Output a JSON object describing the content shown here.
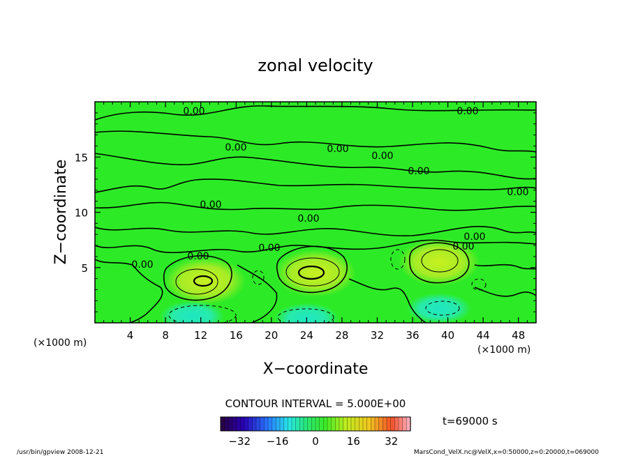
{
  "chart_data": {
    "type": "heatmap",
    "title": "zonal velocity",
    "xlabel": "X−coordinate",
    "ylabel": "Z−coordinate",
    "x_unit_left": "(×1000 m)",
    "x_unit_right": "(×1000 m)",
    "xlim": [
      0,
      50
    ],
    "ylim": [
      0,
      20
    ],
    "x_ticks": [
      4,
      8,
      12,
      16,
      20,
      24,
      28,
      32,
      36,
      40,
      44,
      48
    ],
    "y_ticks": [
      5,
      10,
      15
    ],
    "contour_label": "0.00",
    "contour_interval": "CONTOUR INTERVAL = 5.000E+00",
    "time_label": "t=69000 s",
    "colorbar": {
      "range": [
        -40,
        40
      ],
      "ticks": [
        -32,
        -16,
        0,
        16,
        32
      ],
      "tick_labels": [
        "−32",
        "−16",
        "0",
        "16",
        "32"
      ]
    },
    "features": [
      {
        "type": "max",
        "x": 12.5,
        "z": 3.8
      },
      {
        "type": "max",
        "x": 25,
        "z": 4.5
      },
      {
        "type": "max",
        "x": 39,
        "z": 5.5
      },
      {
        "type": "min",
        "x": 11,
        "z": 0.6
      },
      {
        "type": "min",
        "x": 24,
        "z": 0.4
      },
      {
        "type": "min",
        "x": 39,
        "z": 1.3
      }
    ],
    "colors": {
      "background": "#22ee22",
      "positive": "#aaee22",
      "negative": "#22eecc"
    }
  },
  "footer": {
    "left": "/usr/bin/gpview   2008-12-21",
    "right": "MarsCond_VelX.nc@VelX,x=0:50000,z=0:20000,t=069000"
  }
}
